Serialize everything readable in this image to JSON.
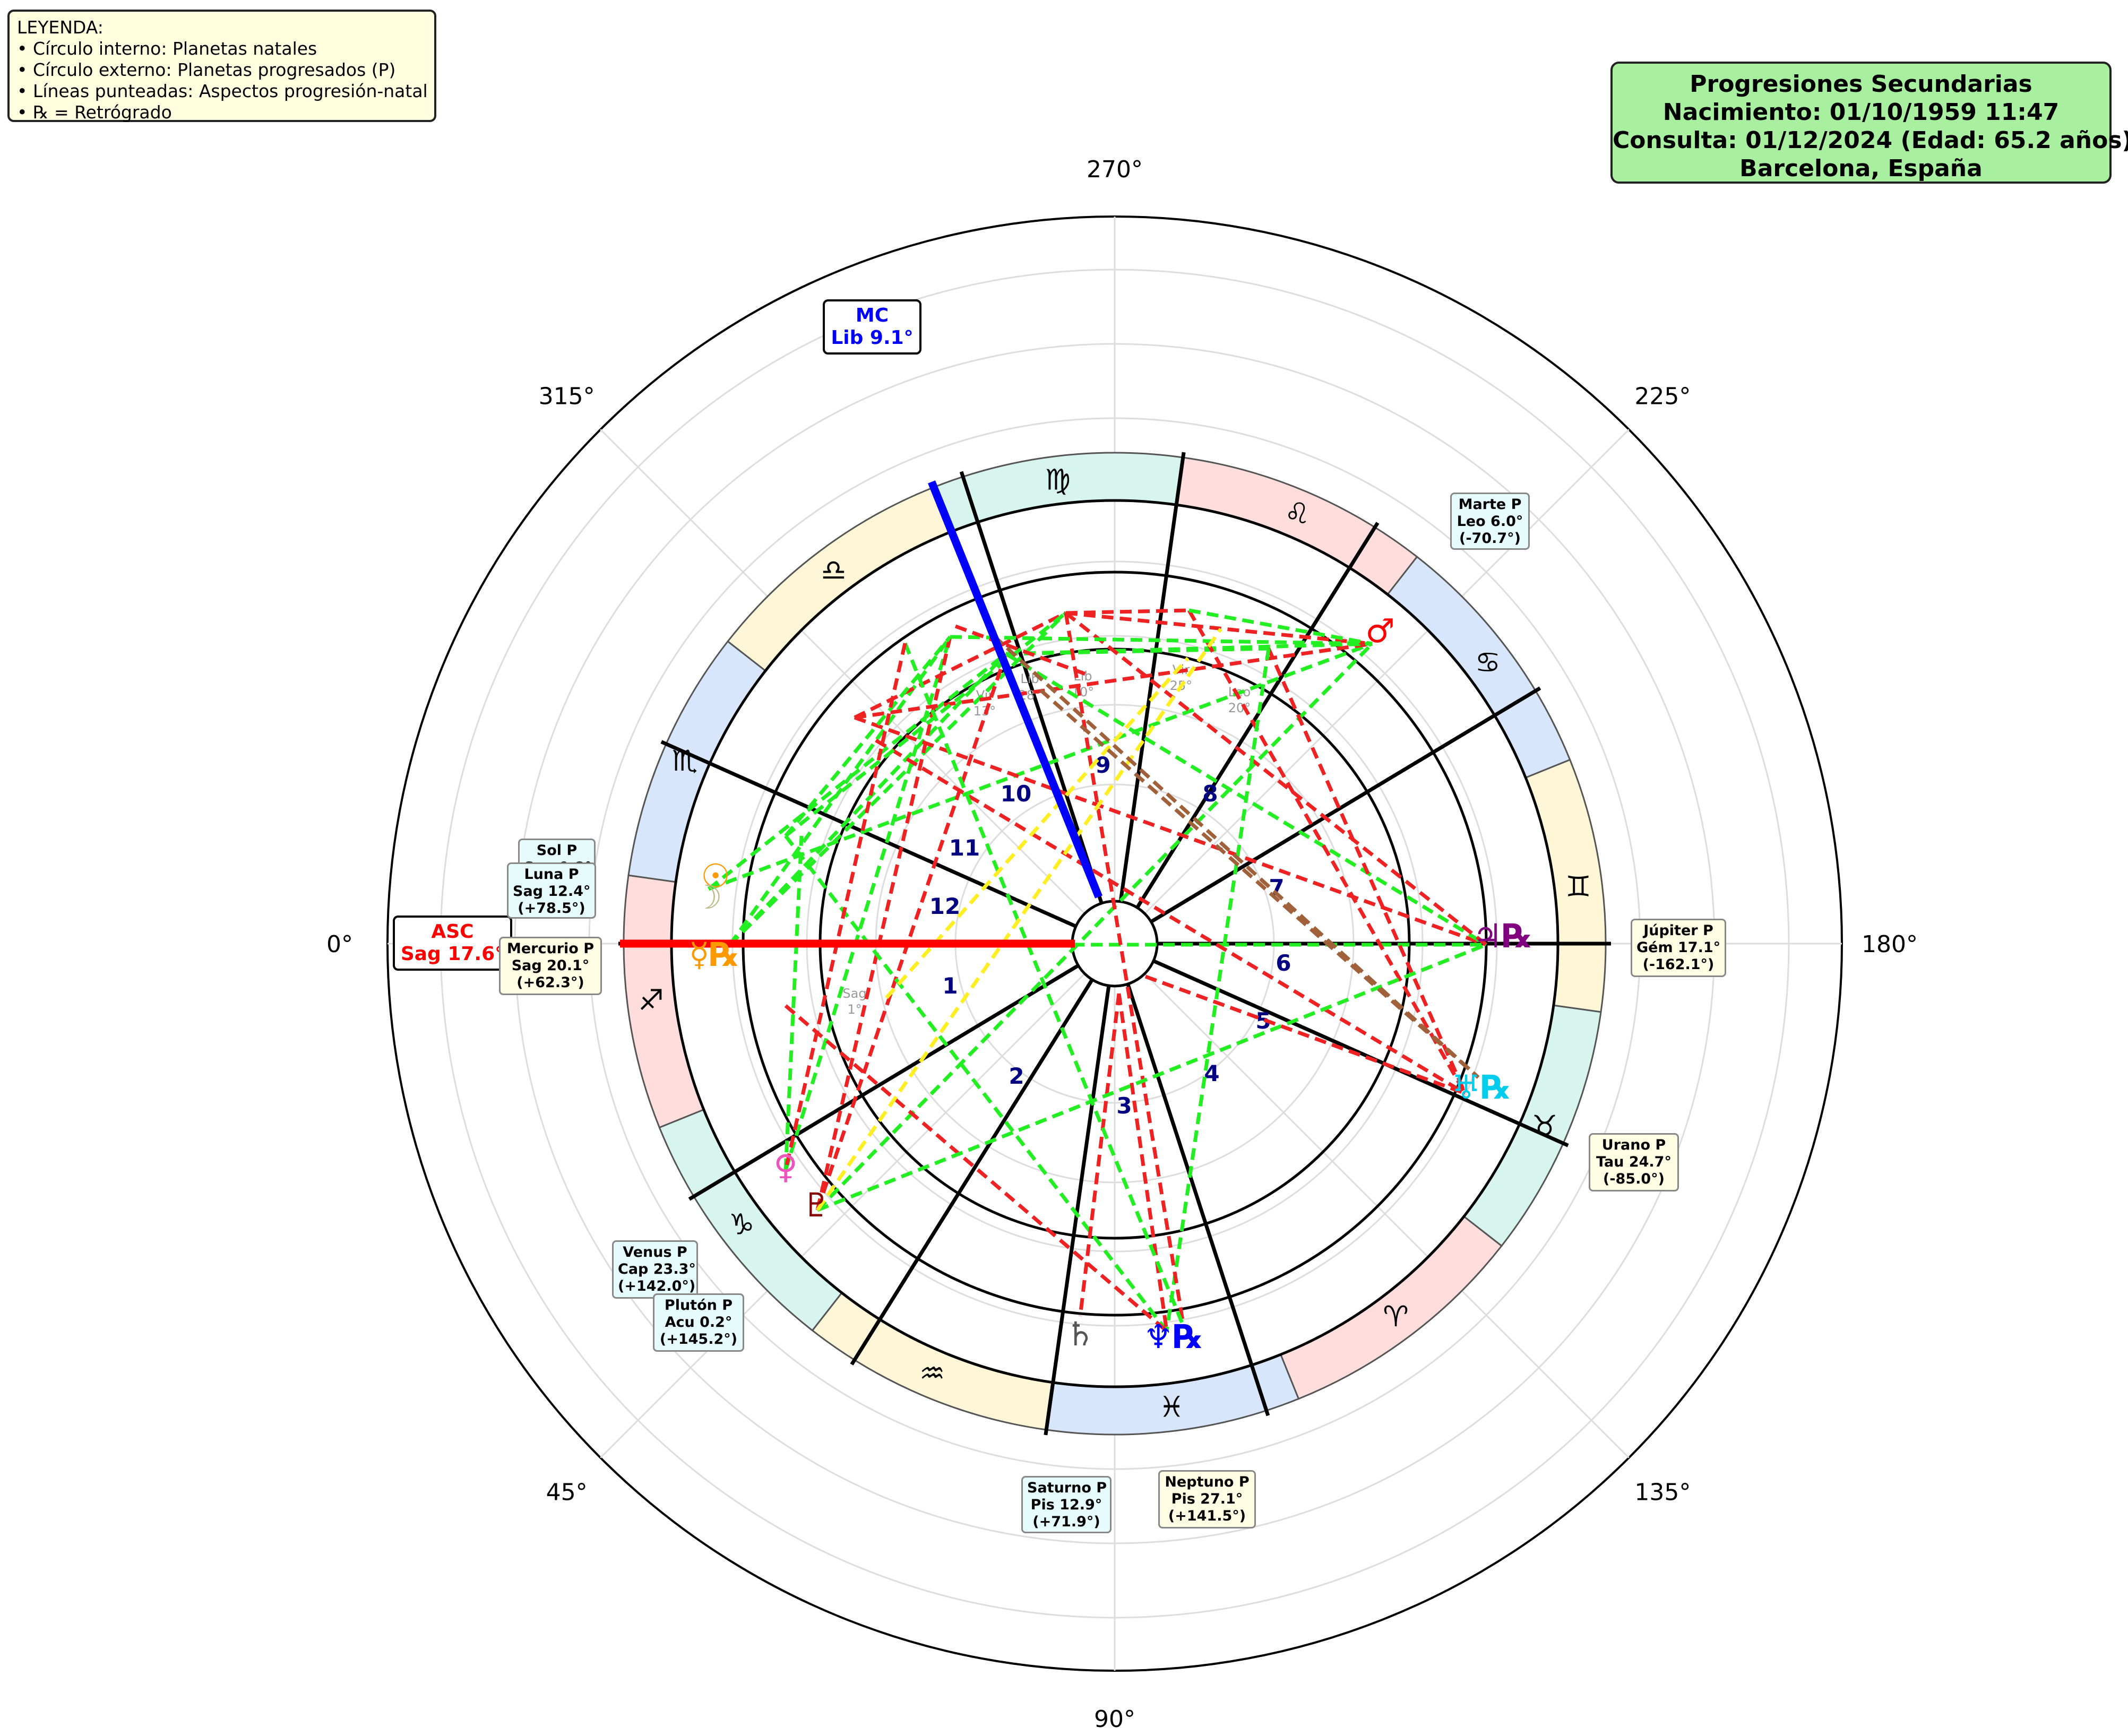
{
  "legend": {
    "title": "LEYENDA:",
    "items": [
      "• Círculo interno: Planetas natales",
      "• Círculo externo: Planetas progresados (P)",
      "• Líneas punteadas: Aspectos progresión-natal",
      "• ℞ = Retrógrado"
    ]
  },
  "info": {
    "line1": "Progresiones Secundarias",
    "line2": "Nacimiento: 01/10/1959 11:47",
    "line3": "Consulta: 01/12/2024 (Edad: 65.2 años)",
    "line4": "Barcelona, España"
  },
  "degree_labels": [
    "0°",
    "45°",
    "90°",
    "135°",
    "180°",
    "225°",
    "270°",
    "315°"
  ],
  "signs": [
    "♐",
    "♑",
    "♒",
    "♓",
    "♈",
    "♉",
    "♊",
    "♋",
    "♌",
    "♍",
    "♎",
    "♏"
  ],
  "houses": [
    "1",
    "2",
    "3",
    "4",
    "5",
    "6",
    "7",
    "8",
    "9",
    "10",
    "11",
    "12"
  ],
  "asc": {
    "label": "ASC",
    "value": "Sag 17.6°",
    "color": "#ff0000"
  },
  "mc": {
    "label": "MC",
    "value": "Lib 9.1°",
    "color": "#0000ff"
  },
  "progressed": [
    {
      "name": "Sol P",
      "pos": "Sag 9.8°",
      "arc": "",
      "glyph": "☉",
      "color": "#ff9900"
    },
    {
      "name": "Luna P",
      "pos": "Sag 12.4°",
      "arc": "(+78.5°)",
      "glyph": "☽",
      "color": "#bbbb88"
    },
    {
      "name": "Mercurio P",
      "pos": "Sag 20.1°",
      "arc": "(+62.3°)",
      "glyph": "☿℞",
      "color": "#ff9900"
    },
    {
      "name": "Venus P",
      "pos": "Cap 23.3°",
      "arc": "(+142.0°)",
      "glyph": "♀",
      "color": "#ee55bb"
    },
    {
      "name": "Plutón P",
      "pos": "Acu 0.2°",
      "arc": "(+145.2°)",
      "glyph": "♇",
      "color": "#880000"
    },
    {
      "name": "Saturno P",
      "pos": "Pis 12.9°",
      "arc": "(+71.9°)",
      "glyph": "♄",
      "color": "#555555"
    },
    {
      "name": "Neptuno P",
      "pos": "Pis 27.1°",
      "arc": "(+141.5°)",
      "glyph": "♆℞",
      "color": "#0000ff"
    },
    {
      "name": "Urano P",
      "pos": "Tau 24.7°",
      "arc": "(-85.0°)",
      "glyph": "♅℞",
      "color": "#00ccee"
    },
    {
      "name": "Júpiter P",
      "pos": "Gém 17.1°",
      "arc": "(-162.1°)",
      "glyph": "♃℞",
      "color": "#800080"
    },
    {
      "name": "Marte P",
      "pos": "Leo 6.0°",
      "arc": "(-70.7°)",
      "glyph": "♂",
      "color": "#ff0000"
    }
  ],
  "natal_labels": [
    "Sag",
    "1°",
    "Lib",
    "28°",
    "Vir",
    "13°",
    "Vir",
    "25°",
    "Leo",
    "20°",
    "Lib",
    "10°"
  ]
}
